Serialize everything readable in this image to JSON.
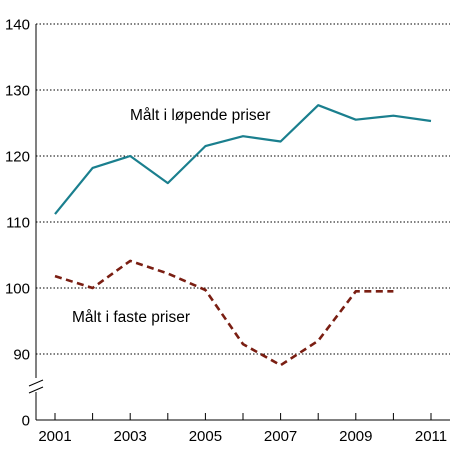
{
  "chart_data": {
    "type": "line",
    "title": "",
    "xlabel": "",
    "ylabel": "",
    "x": [
      2001,
      2002,
      2003,
      2004,
      2005,
      2006,
      2007,
      2008,
      2009,
      2010,
      2011
    ],
    "x_tick_labels": [
      "2001",
      "2003",
      "2005",
      "2007",
      "2009",
      "2011"
    ],
    "y_tick_labels": [
      "140",
      "130",
      "120",
      "110",
      "100",
      "90",
      "0"
    ],
    "y_ticks": [
      140,
      130,
      120,
      110,
      100,
      90
    ],
    "ylim": [
      85,
      140
    ],
    "y_axis_break": true,
    "grid": "horizontal-dotted",
    "series": [
      {
        "name": "Målt i løpende priser",
        "color": "#1a7f8e",
        "style": "solid",
        "values": [
          111.2,
          118.2,
          120.0,
          115.9,
          121.5,
          123.0,
          122.2,
          127.7,
          125.5,
          126.1,
          125.3
        ]
      },
      {
        "name": "Målt i faste priser",
        "color": "#7a1e12",
        "style": "dashed",
        "values": [
          101.8,
          100.0,
          104.1,
          102.2,
          99.7,
          91.5,
          88.3,
          92.0,
          99.5,
          99.5,
          null
        ]
      }
    ]
  }
}
